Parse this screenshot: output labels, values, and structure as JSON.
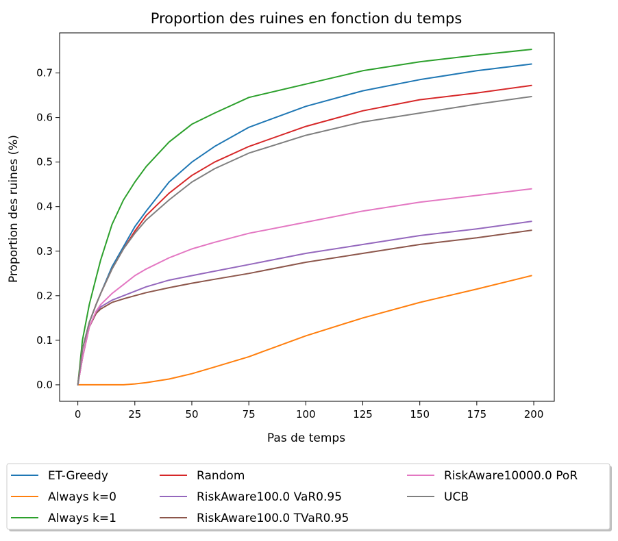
{
  "chart_data": {
    "type": "line",
    "title": "Proportion des ruines en fonction du temps",
    "xlabel": "Pas de temps",
    "ylabel": "Proportion des ruines (%)",
    "xlim": [
      -8,
      209
    ],
    "ylim": [
      -0.037,
      0.79
    ],
    "xticks": [
      0,
      25,
      50,
      75,
      100,
      125,
      150,
      175,
      200
    ],
    "yticks": [
      0.0,
      0.1,
      0.2,
      0.3,
      0.4,
      0.5,
      0.6,
      0.7
    ],
    "grid": false,
    "legend_position": "below",
    "x": [
      0,
      2,
      5,
      8,
      10,
      15,
      20,
      25,
      30,
      40,
      50,
      60,
      75,
      100,
      125,
      150,
      175,
      199
    ],
    "series": [
      {
        "name": "ET-Greedy",
        "color": "#1f77b4",
        "values": [
          0.0,
          0.08,
          0.14,
          0.18,
          0.205,
          0.265,
          0.31,
          0.355,
          0.39,
          0.455,
          0.5,
          0.535,
          0.578,
          0.625,
          0.66,
          0.685,
          0.705,
          0.72
        ]
      },
      {
        "name": "Always k=0",
        "color": "#ff7f0e",
        "values": [
          0.0,
          0.0,
          0.0,
          0.0,
          0.0,
          0.0,
          0.0,
          0.002,
          0.005,
          0.013,
          0.025,
          0.04,
          0.063,
          0.11,
          0.15,
          0.185,
          0.215,
          0.245
        ]
      },
      {
        "name": "Always k=1",
        "color": "#2ca02c",
        "values": [
          0.0,
          0.1,
          0.18,
          0.24,
          0.28,
          0.36,
          0.415,
          0.455,
          0.49,
          0.545,
          0.585,
          0.61,
          0.645,
          0.675,
          0.705,
          0.725,
          0.74,
          0.753
        ]
      },
      {
        "name": "Random",
        "color": "#d62728",
        "values": [
          0.0,
          0.08,
          0.14,
          0.18,
          0.205,
          0.26,
          0.305,
          0.345,
          0.38,
          0.43,
          0.47,
          0.5,
          0.535,
          0.58,
          0.615,
          0.64,
          0.655,
          0.672
        ]
      },
      {
        "name": "RiskAware100.0 VaR0.95",
        "color": "#9467bd",
        "values": [
          0.0,
          0.06,
          0.13,
          0.16,
          0.175,
          0.19,
          0.2,
          0.21,
          0.22,
          0.235,
          0.245,
          0.255,
          0.27,
          0.295,
          0.315,
          0.335,
          0.35,
          0.367
        ]
      },
      {
        "name": "RiskAware100.0 TVaR0.95",
        "color": "#8c564b",
        "values": [
          0.0,
          0.06,
          0.13,
          0.16,
          0.17,
          0.185,
          0.193,
          0.2,
          0.207,
          0.218,
          0.228,
          0.237,
          0.25,
          0.275,
          0.295,
          0.315,
          0.33,
          0.347
        ]
      },
      {
        "name": "RiskAware10000.0 PoR",
        "color": "#e377c2",
        "values": [
          0.0,
          0.06,
          0.13,
          0.165,
          0.18,
          0.205,
          0.225,
          0.245,
          0.26,
          0.285,
          0.305,
          0.32,
          0.34,
          0.365,
          0.39,
          0.41,
          0.425,
          0.44
        ]
      },
      {
        "name": "UCB",
        "color": "#7f7f7f",
        "values": [
          0.0,
          0.08,
          0.14,
          0.18,
          0.205,
          0.26,
          0.305,
          0.34,
          0.37,
          0.415,
          0.455,
          0.485,
          0.52,
          0.56,
          0.59,
          0.61,
          0.63,
          0.647
        ]
      }
    ]
  }
}
